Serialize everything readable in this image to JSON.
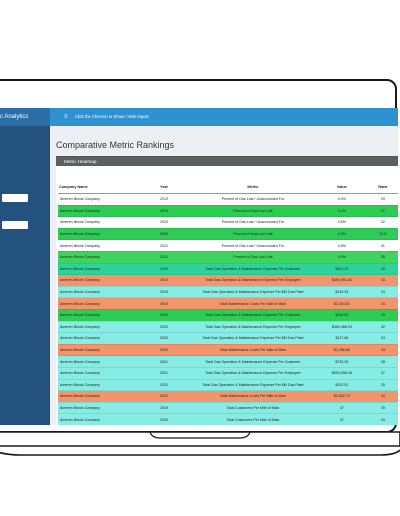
{
  "header": {
    "app_title": "c Analytics",
    "toggle_text": "Click the Chevron to Show / Hide Inputs"
  },
  "page": {
    "title": "Comparative Metric Rankings"
  },
  "panel": {
    "title": "Metric Heatmap"
  },
  "table": {
    "columns": [
      "Company Name",
      "Year",
      "Metric",
      "Value",
      "Rank"
    ],
    "rows": [
      [
        "Ameren Illinois Company",
        "2019",
        "Percent of Gas Lost / Unaccounted For",
        "0.0%",
        "29"
      ],
      [
        "Ameren Illinois Company",
        "2019",
        "Percent of Gas Lost Unit",
        "0.1%",
        "27"
      ],
      [
        "Ameren Illinois Company",
        "2020",
        "Percent of Gas Lost / Unaccounted For",
        "0.6%",
        "32"
      ],
      [
        "Ameren Illinois Company",
        "2020",
        "Percent of Gas Lost Unit",
        "0.0%",
        "31.5"
      ],
      [
        "Ameren Illinois Company",
        "2021",
        "Percent of Gas Lost / Unaccounted For",
        "0.8%",
        "41"
      ],
      [
        "Ameren Illinois Company",
        "2021",
        "Percent of Gas Lost Unit",
        "0.9%",
        "35"
      ],
      [
        "Ameren Illinois Company",
        "2019",
        "Total Gas Operation & Maintenance Expense Per Customer",
        "$301.22",
        "15"
      ],
      [
        "Ameren Illinois Company",
        "2019",
        "Total Gas Operation & Maintenance Expense Per Employee",
        "$304,961.84",
        "33"
      ],
      [
        "Ameren Illinois Company",
        "2019",
        "Total Gas Operation & Maintenance Expense Per $M Gas Plant",
        "$144.24",
        "24"
      ],
      [
        "Ameren Illinois Company",
        "2019",
        "Total Maintenance Costs Per Mile of Main",
        "$2,334.51",
        "24"
      ],
      [
        "Ameren Illinois Company",
        "2020",
        "Total Gas Operation & Maintenance Expense Per Customer",
        "$318.54",
        "15"
      ],
      [
        "Ameren Illinois Company",
        "2020",
        "Total Gas Operation & Maintenance Expense Per Employee",
        "$369,488.93",
        "32"
      ],
      [
        "Ameren Illinois Company",
        "2020",
        "Total Gas Operation & Maintenance Expense Per $M Gas Plant",
        "$117.06",
        "24"
      ],
      [
        "Ameren Illinois Company",
        "2020",
        "Total Maintenance Costs Per Mile of Main",
        "$2,288.86",
        "34"
      ],
      [
        "Ameren Illinois Company",
        "2021",
        "Total Gas Operation & Maintenance Expense Per Customer",
        "$739.05",
        "28"
      ],
      [
        "Ameren Illinois Company",
        "2021",
        "Total Gas Operation & Maintenance Expense Per Employee",
        "$503,996.08",
        "37"
      ],
      [
        "Ameren Illinois Company",
        "2021",
        "Total Gas Operation & Maintenance Expense Per $M Gas Plant",
        "$152.51",
        "25"
      ],
      [
        "Ameren Illinois Company",
        "2021",
        "Total Maintenance Costs Per Mile of Main",
        "$2,532.73",
        "34"
      ],
      [
        "Ameren Illinois Company",
        "2019",
        "Total Customers Per Mile of Main",
        "47",
        "39"
      ],
      [
        "Ameren Illinois Company",
        "2020",
        "Total Customers Per Mile of Main",
        "47",
        "43"
      ],
      [
        "Ameren Illinois Company",
        "2021",
        "Total Customers Per Mile of Main",
        "47",
        "40"
      ]
    ],
    "row_colors": [
      "#ffffff",
      "#2ecc55",
      "#ffffff",
      "#2ecc55",
      "#ffffff",
      "#3fd35f",
      "#2ed39a",
      "#f4946a",
      "#86ece4",
      "#f4946a",
      "#2ecc55",
      "#86ece4",
      "#86ece4",
      "#f4946a",
      "#86ece4",
      "#86ece4",
      "#86ece4",
      "#f4946a",
      "#86ece4",
      "#86ece4",
      "#86ece4"
    ]
  }
}
